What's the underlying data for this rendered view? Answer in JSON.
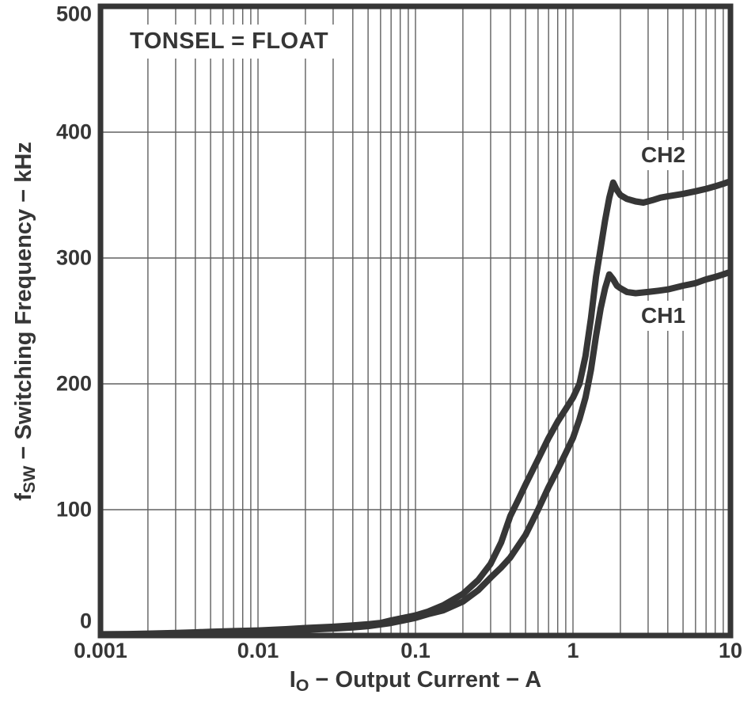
{
  "figure": {
    "annotation": "TONSEL = FLOAT",
    "y_axis": {
      "label_prefix": "f",
      "label_sub": "SW",
      "label_rest": " − Switching Frequency − kHz",
      "ticks": [
        "0",
        "100",
        "200",
        "300",
        "400",
        "500"
      ]
    },
    "x_axis": {
      "label_prefix": "I",
      "label_sub": "O",
      "label_rest": " − Output Current − A",
      "ticks": [
        "0.001",
        "0.01",
        "0.1",
        "1",
        "10"
      ]
    },
    "colors": {
      "ink": "#363636",
      "grid": "#606060",
      "background": "#ffffff"
    }
  },
  "chart_data": {
    "type": "line",
    "title": "",
    "xlabel": "IO − Output Current − A",
    "ylabel": "fSW − Switching Frequency − kHz",
    "x_scale": "log",
    "xlim": [
      0.001,
      10
    ],
    "ylim": [
      0,
      500
    ],
    "y_gridlines": [
      100,
      200,
      300,
      400
    ],
    "grid": "log-x-minor-and-y-major",
    "legend_position": "inline-labels",
    "annotations": [
      "TONSEL = FLOAT"
    ],
    "series": [
      {
        "name": "CH2",
        "points": [
          [
            0.001,
            1
          ],
          [
            0.0015,
            1.2
          ],
          [
            0.002,
            1.5
          ],
          [
            0.003,
            2
          ],
          [
            0.004,
            2.5
          ],
          [
            0.005,
            3
          ],
          [
            0.007,
            3.5
          ],
          [
            0.01,
            4
          ],
          [
            0.015,
            5
          ],
          [
            0.02,
            6
          ],
          [
            0.03,
            7
          ],
          [
            0.04,
            8
          ],
          [
            0.05,
            9
          ],
          [
            0.06,
            10
          ],
          [
            0.07,
            12
          ],
          [
            0.08,
            13.5
          ],
          [
            0.1,
            16
          ],
          [
            0.12,
            19
          ],
          [
            0.15,
            24
          ],
          [
            0.2,
            33
          ],
          [
            0.25,
            44
          ],
          [
            0.3,
            57
          ],
          [
            0.35,
            74
          ],
          [
            0.4,
            95
          ],
          [
            0.45,
            108
          ],
          [
            0.5,
            120
          ],
          [
            0.6,
            140
          ],
          [
            0.7,
            157
          ],
          [
            0.8,
            170
          ],
          [
            0.9,
            180
          ],
          [
            1.0,
            189
          ],
          [
            1.1,
            200
          ],
          [
            1.2,
            222
          ],
          [
            1.3,
            252
          ],
          [
            1.4,
            285
          ],
          [
            1.5,
            308
          ],
          [
            1.6,
            330
          ],
          [
            1.7,
            348
          ],
          [
            1.8,
            360
          ],
          [
            1.9,
            354
          ],
          [
            2.0,
            350
          ],
          [
            2.2,
            347
          ],
          [
            2.5,
            345
          ],
          [
            2.8,
            344
          ],
          [
            3.2,
            346
          ],
          [
            3.6,
            348
          ],
          [
            4.0,
            349
          ],
          [
            5.0,
            351
          ],
          [
            6.0,
            353
          ],
          [
            7.0,
            355
          ],
          [
            8.0,
            357
          ],
          [
            9.0,
            359
          ],
          [
            10.0,
            361
          ]
        ]
      },
      {
        "name": "CH1",
        "points": [
          [
            0.001,
            0.5
          ],
          [
            0.002,
            1
          ],
          [
            0.003,
            1.5
          ],
          [
            0.005,
            2
          ],
          [
            0.007,
            2.5
          ],
          [
            0.01,
            3
          ],
          [
            0.015,
            4
          ],
          [
            0.02,
            4.5
          ],
          [
            0.03,
            5.5
          ],
          [
            0.04,
            6.5
          ],
          [
            0.05,
            7.5
          ],
          [
            0.07,
            10
          ],
          [
            0.1,
            14
          ],
          [
            0.12,
            17
          ],
          [
            0.15,
            20
          ],
          [
            0.2,
            27
          ],
          [
            0.25,
            36
          ],
          [
            0.3,
            46
          ],
          [
            0.35,
            54
          ],
          [
            0.4,
            62
          ],
          [
            0.5,
            80
          ],
          [
            0.6,
            100
          ],
          [
            0.7,
            118
          ],
          [
            0.8,
            132
          ],
          [
            0.9,
            145
          ],
          [
            1.0,
            157
          ],
          [
            1.1,
            172
          ],
          [
            1.2,
            189
          ],
          [
            1.25,
            200
          ],
          [
            1.3,
            211
          ],
          [
            1.4,
            238
          ],
          [
            1.5,
            260
          ],
          [
            1.6,
            276
          ],
          [
            1.7,
            287
          ],
          [
            1.8,
            283
          ],
          [
            1.9,
            278
          ],
          [
            2.0,
            276
          ],
          [
            2.2,
            273
          ],
          [
            2.5,
            272
          ],
          [
            3.0,
            273
          ],
          [
            3.5,
            274
          ],
          [
            4.0,
            275
          ],
          [
            5.0,
            278
          ],
          [
            6.0,
            280
          ],
          [
            7.0,
            283
          ],
          [
            8.0,
            285
          ],
          [
            9.0,
            287
          ],
          [
            10.0,
            289
          ]
        ]
      }
    ]
  }
}
